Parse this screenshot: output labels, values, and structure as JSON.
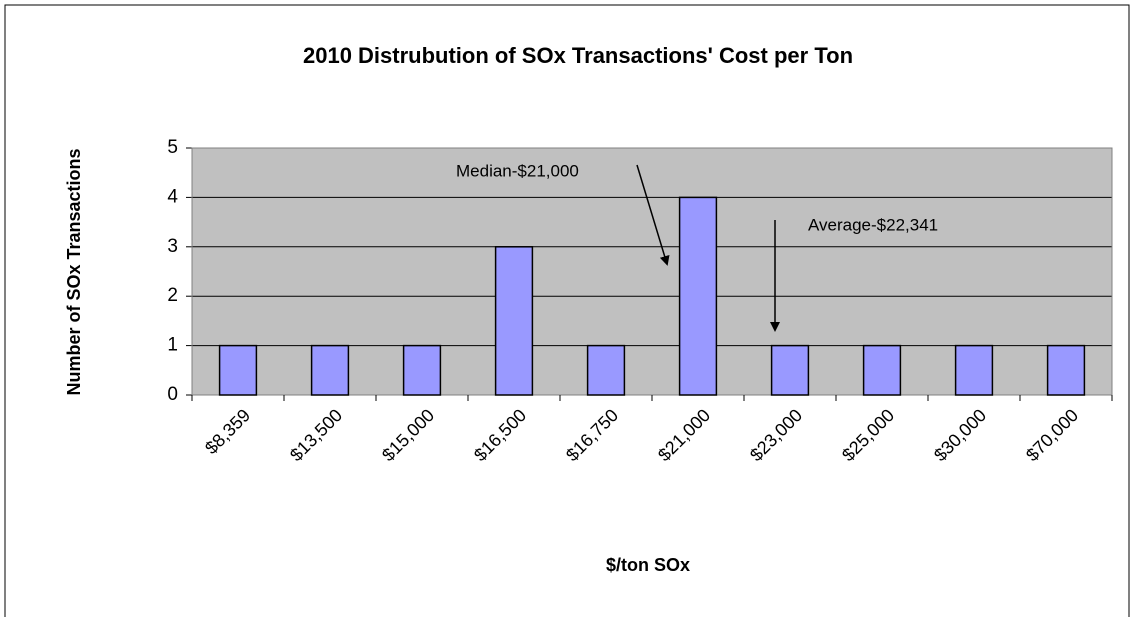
{
  "chart_data": {
    "type": "bar",
    "title": "2010 Distrubution of SOx Transactions' Cost per Ton",
    "x_label": "$/ton SOx",
    "y_label": "Number of SOx Transactions",
    "categories": [
      "$8,359",
      "$13,500",
      "$15,000",
      "$16,500",
      "$16,750",
      "$21,000",
      "$23,000",
      "$25,000",
      "$30,000",
      "$70,000"
    ],
    "values": [
      1,
      1,
      1,
      3,
      1,
      4,
      1,
      1,
      1,
      1
    ],
    "color": "#9999ff",
    "ylim": [
      0,
      5
    ],
    "yticks": [
      0,
      1,
      2,
      3,
      4,
      5
    ],
    "grid": true,
    "annotations": [
      "Median-$21,000",
      "Average-$22,341"
    ]
  }
}
